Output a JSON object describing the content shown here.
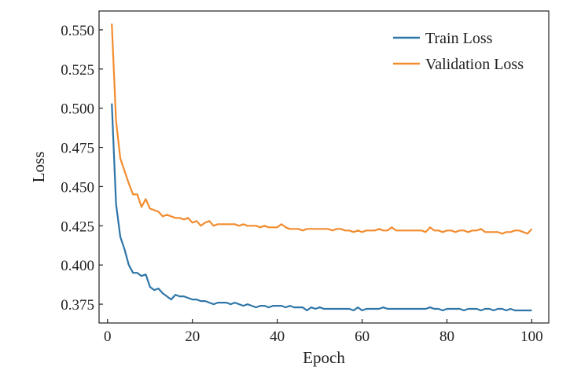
{
  "chart_data": {
    "type": "line",
    "xlabel": "Epoch",
    "ylabel": "Loss",
    "xlim": [
      -2,
      104
    ],
    "ylim": [
      0.363,
      0.562
    ],
    "xticks": [
      0,
      20,
      40,
      60,
      80,
      100
    ],
    "yticks": [
      0.375,
      0.4,
      0.425,
      0.45,
      0.475,
      0.5,
      0.525,
      0.55
    ],
    "xtick_labels": [
      "0",
      "20",
      "40",
      "60",
      "80",
      "100"
    ],
    "ytick_labels": [
      "0.375",
      "0.400",
      "0.425",
      "0.450",
      "0.475",
      "0.500",
      "0.525",
      "0.550"
    ],
    "grid": false,
    "legend_position": "top-right",
    "x": [
      1,
      2,
      3,
      4,
      5,
      6,
      7,
      8,
      9,
      10,
      11,
      12,
      13,
      14,
      15,
      16,
      17,
      18,
      19,
      20,
      21,
      22,
      23,
      24,
      25,
      26,
      27,
      28,
      29,
      30,
      31,
      32,
      33,
      34,
      35,
      36,
      37,
      38,
      39,
      40,
      41,
      42,
      43,
      44,
      45,
      46,
      47,
      48,
      49,
      50,
      51,
      52,
      53,
      54,
      55,
      56,
      57,
      58,
      59,
      60,
      61,
      62,
      63,
      64,
      65,
      66,
      67,
      68,
      69,
      70,
      71,
      72,
      73,
      74,
      75,
      76,
      77,
      78,
      79,
      80,
      81,
      82,
      83,
      84,
      85,
      86,
      87,
      88,
      89,
      90,
      91,
      92,
      93,
      94,
      95,
      96,
      97,
      98,
      99,
      100
    ],
    "series": [
      {
        "name": "Train Loss",
        "color": "#2e75a8",
        "values": [
          0.503,
          0.439,
          0.418,
          0.41,
          0.4,
          0.395,
          0.395,
          0.393,
          0.394,
          0.386,
          0.384,
          0.385,
          0.382,
          0.38,
          0.378,
          0.381,
          0.38,
          0.38,
          0.379,
          0.378,
          0.378,
          0.377,
          0.377,
          0.376,
          0.375,
          0.376,
          0.376,
          0.376,
          0.375,
          0.376,
          0.375,
          0.374,
          0.375,
          0.374,
          0.373,
          0.374,
          0.374,
          0.373,
          0.374,
          0.374,
          0.374,
          0.373,
          0.374,
          0.373,
          0.373,
          0.373,
          0.371,
          0.373,
          0.372,
          0.373,
          0.372,
          0.372,
          0.372,
          0.372,
          0.372,
          0.372,
          0.372,
          0.371,
          0.373,
          0.371,
          0.372,
          0.372,
          0.372,
          0.372,
          0.373,
          0.372,
          0.372,
          0.372,
          0.372,
          0.372,
          0.372,
          0.372,
          0.372,
          0.372,
          0.372,
          0.373,
          0.372,
          0.372,
          0.371,
          0.372,
          0.372,
          0.372,
          0.372,
          0.371,
          0.372,
          0.372,
          0.372,
          0.371,
          0.372,
          0.372,
          0.371,
          0.372,
          0.372,
          0.371,
          0.372,
          0.371,
          0.371,
          0.371,
          0.371,
          0.371
        ]
      },
      {
        "name": "Validation Loss",
        "color": "#f28c2e",
        "values": [
          0.554,
          0.492,
          0.468,
          0.46,
          0.452,
          0.445,
          0.445,
          0.437,
          0.442,
          0.436,
          0.435,
          0.434,
          0.431,
          0.432,
          0.431,
          0.43,
          0.43,
          0.429,
          0.43,
          0.427,
          0.428,
          0.425,
          0.427,
          0.428,
          0.425,
          0.426,
          0.426,
          0.426,
          0.426,
          0.426,
          0.425,
          0.426,
          0.425,
          0.425,
          0.425,
          0.424,
          0.425,
          0.424,
          0.424,
          0.424,
          0.426,
          0.424,
          0.423,
          0.423,
          0.423,
          0.422,
          0.423,
          0.423,
          0.423,
          0.423,
          0.423,
          0.423,
          0.422,
          0.423,
          0.423,
          0.422,
          0.422,
          0.421,
          0.422,
          0.421,
          0.422,
          0.422,
          0.422,
          0.423,
          0.422,
          0.422,
          0.424,
          0.422,
          0.422,
          0.422,
          0.422,
          0.422,
          0.422,
          0.422,
          0.421,
          0.424,
          0.422,
          0.422,
          0.421,
          0.422,
          0.422,
          0.421,
          0.422,
          0.422,
          0.421,
          0.422,
          0.422,
          0.423,
          0.421,
          0.421,
          0.421,
          0.421,
          0.42,
          0.421,
          0.421,
          0.422,
          0.422,
          0.421,
          0.42,
          0.423
        ]
      }
    ]
  }
}
